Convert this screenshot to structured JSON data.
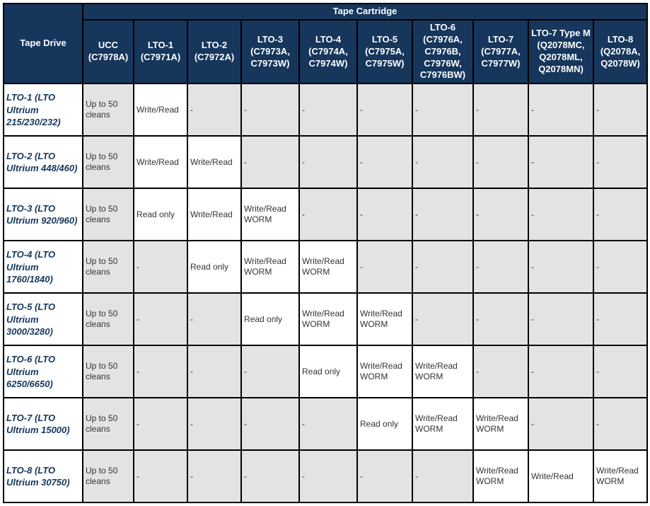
{
  "table": {
    "type": "table",
    "header_bg": "#16365c",
    "header_fg": "#ffffff",
    "rowhead_fg": "#16365c",
    "border_color": "#000000",
    "grey_cell": "#e3e3e3",
    "white_cell": "#ffffff",
    "super_header": "Tape Cartridge",
    "corner_label": "Tape Drive",
    "columns": [
      {
        "name": "UCC",
        "detail": "(C7978A)"
      },
      {
        "name": "LTO-1",
        "detail": "(C7971A)"
      },
      {
        "name": "LTO-2",
        "detail": "(C7972A)"
      },
      {
        "name": "LTO-3",
        "detail": "(C7973A, C7973W)"
      },
      {
        "name": "LTO-4",
        "detail": "(C7974A, C7974W)"
      },
      {
        "name": "LTO-5",
        "detail": "(C7975A, C7975W)"
      },
      {
        "name": "LTO-6",
        "detail": "(C7976A, C7976B, C7976W, C7976BW)"
      },
      {
        "name": "LTO-7",
        "detail": "(C7977A, C7977W)"
      },
      {
        "name": "LTO-7 Type M",
        "detail": "(Q2078MC, Q2078ML, Q2078MN)"
      },
      {
        "name": "LTO-8",
        "detail": "(Q2078A, Q2078W)"
      }
    ],
    "rows": [
      {
        "label": "LTO-1 (LTO Ultrium 215/230/232)",
        "cells": [
          {
            "v": "Up to 50 cleans",
            "bg": "grey"
          },
          {
            "v": "Write/Read",
            "bg": "white"
          },
          {
            "v": "-",
            "bg": "grey"
          },
          {
            "v": "-",
            "bg": "grey"
          },
          {
            "v": "-",
            "bg": "grey"
          },
          {
            "v": "-",
            "bg": "grey"
          },
          {
            "v": "-",
            "bg": "grey"
          },
          {
            "v": "-",
            "bg": "grey"
          },
          {
            "v": "-",
            "bg": "grey"
          },
          {
            "v": "-",
            "bg": "grey"
          }
        ]
      },
      {
        "label": "LTO-2 (LTO Ultrium 448/460)",
        "cells": [
          {
            "v": "Up to 50 cleans",
            "bg": "grey"
          },
          {
            "v": "Write/Read",
            "bg": "white"
          },
          {
            "v": "Write/Read",
            "bg": "white"
          },
          {
            "v": "-",
            "bg": "grey"
          },
          {
            "v": "-",
            "bg": "grey"
          },
          {
            "v": "-",
            "bg": "grey"
          },
          {
            "v": "-",
            "bg": "grey"
          },
          {
            "v": "-",
            "bg": "grey"
          },
          {
            "v": "-",
            "bg": "grey"
          },
          {
            "v": "-",
            "bg": "grey"
          }
        ]
      },
      {
        "label": "LTO-3 (LTO Ultrium 920/960)",
        "cells": [
          {
            "v": "Up to 50 cleans",
            "bg": "grey"
          },
          {
            "v": "Read only",
            "bg": "white"
          },
          {
            "v": "Write/Read",
            "bg": "white"
          },
          {
            "v": "Write/Read WORM",
            "bg": "white"
          },
          {
            "v": "-",
            "bg": "grey"
          },
          {
            "v": "-",
            "bg": "grey"
          },
          {
            "v": "-",
            "bg": "grey"
          },
          {
            "v": "-",
            "bg": "grey"
          },
          {
            "v": "-",
            "bg": "grey"
          },
          {
            "v": "-",
            "bg": "grey"
          }
        ]
      },
      {
        "label": "LTO-4 (LTO Ultrium 1760/1840)",
        "cells": [
          {
            "v": "Up to 50 cleans",
            "bg": "grey"
          },
          {
            "v": "-",
            "bg": "grey"
          },
          {
            "v": "Read only",
            "bg": "white"
          },
          {
            "v": "Write/Read WORM",
            "bg": "white"
          },
          {
            "v": "Write/Read WORM",
            "bg": "white"
          },
          {
            "v": "-",
            "bg": "grey"
          },
          {
            "v": "-",
            "bg": "grey"
          },
          {
            "v": "-",
            "bg": "grey"
          },
          {
            "v": "-",
            "bg": "grey"
          },
          {
            "v": "-",
            "bg": "grey"
          }
        ]
      },
      {
        "label": "LTO-5 (LTO Ultrium 3000/3280)",
        "cells": [
          {
            "v": "Up to 50 cleans",
            "bg": "grey"
          },
          {
            "v": "-",
            "bg": "grey"
          },
          {
            "v": "-",
            "bg": "grey"
          },
          {
            "v": "Read only",
            "bg": "white"
          },
          {
            "v": "Write/Read WORM",
            "bg": "white"
          },
          {
            "v": "Write/Read WORM",
            "bg": "white"
          },
          {
            "v": "-",
            "bg": "grey"
          },
          {
            "v": "-",
            "bg": "grey"
          },
          {
            "v": "-",
            "bg": "grey"
          },
          {
            "v": "-",
            "bg": "grey"
          }
        ]
      },
      {
        "label": "LTO-6 (LTO Ultrium 6250/6650)",
        "cells": [
          {
            "v": "Up to 50 cleans",
            "bg": "grey"
          },
          {
            "v": "-",
            "bg": "grey"
          },
          {
            "v": "-",
            "bg": "grey"
          },
          {
            "v": "-",
            "bg": "grey"
          },
          {
            "v": "Read only",
            "bg": "white"
          },
          {
            "v": "Write/Read WORM",
            "bg": "white"
          },
          {
            "v": "Write/Read WORM",
            "bg": "white"
          },
          {
            "v": "-",
            "bg": "grey"
          },
          {
            "v": "-",
            "bg": "grey"
          },
          {
            "v": "-",
            "bg": "grey"
          }
        ]
      },
      {
        "label": "LTO-7 (LTO Ultrium 15000)",
        "cells": [
          {
            "v": "Up to 50 cleans",
            "bg": "grey"
          },
          {
            "v": "-",
            "bg": "grey"
          },
          {
            "v": "-",
            "bg": "grey"
          },
          {
            "v": "-",
            "bg": "grey"
          },
          {
            "v": "-",
            "bg": "grey"
          },
          {
            "v": "Read only",
            "bg": "white"
          },
          {
            "v": "Write/Read WORM",
            "bg": "white"
          },
          {
            "v": "Write/Read WORM",
            "bg": "white"
          },
          {
            "v": "-",
            "bg": "grey"
          },
          {
            "v": "-",
            "bg": "grey"
          }
        ]
      },
      {
        "label": "LTO-8 (LTO Ultrium 30750)",
        "cells": [
          {
            "v": "Up to 50 cleans",
            "bg": "grey"
          },
          {
            "v": "-",
            "bg": "grey"
          },
          {
            "v": "-",
            "bg": "grey"
          },
          {
            "v": "-",
            "bg": "grey"
          },
          {
            "v": "-",
            "bg": "grey"
          },
          {
            "v": "-",
            "bg": "grey"
          },
          {
            "v": "-",
            "bg": "grey"
          },
          {
            "v": "Write/Read WORM",
            "bg": "white"
          },
          {
            "v": "Write/Read",
            "bg": "white"
          },
          {
            "v": "Write/Read WORM",
            "bg": "white"
          }
        ]
      }
    ]
  }
}
